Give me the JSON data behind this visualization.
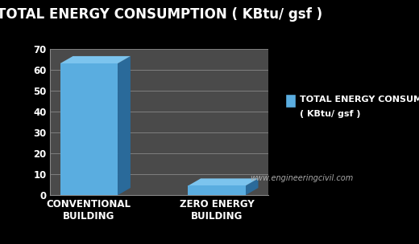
{
  "title": "TOTAL ENERGY CONSUMPTION ( KBtu/ gsf )",
  "categories": [
    "CONVENTIONAL\nBUILDING",
    "ZERO ENERGY\nBUILDING"
  ],
  "values": [
    63,
    4.5
  ],
  "bar_color": "#5aade0",
  "bar_shadow_color": "#2a6a9a",
  "top_face_color": "#7cc4ee",
  "background_color": "#000000",
  "plot_bg_color": "#4a4a4a",
  "grid_color": "#888888",
  "text_color": "#ffffff",
  "ylim": [
    0,
    70
  ],
  "yticks": [
    0,
    10,
    20,
    30,
    40,
    50,
    60,
    70
  ],
  "legend_label_line1": "TOTAL ENERGY CONSUMPTION",
  "legend_label_line2": "( KBtu/ gsf )",
  "website": "www.engineeringcivil.com",
  "title_fontsize": 12,
  "tick_fontsize": 8.5,
  "legend_fontsize": 8,
  "website_fontsize": 7,
  "bar_width": 0.45
}
